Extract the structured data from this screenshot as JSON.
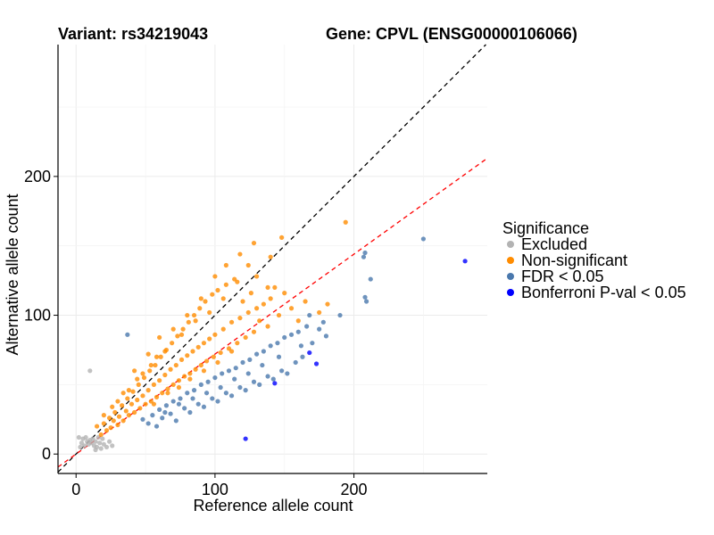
{
  "chart_data": {
    "type": "scatter",
    "title_left": "Variant: rs34219043",
    "title_right": "Gene: CPVL (ENSG00000106066)",
    "xlabel": "Reference allele count",
    "ylabel": "Alternative allele count",
    "xlim": [
      -13,
      296
    ],
    "ylim": [
      -14,
      295
    ],
    "xticks": [
      0,
      100,
      200
    ],
    "yticks": [
      0,
      100,
      200
    ],
    "grid": true,
    "legend": {
      "title": "Significance",
      "position": "right",
      "entries": [
        {
          "label": "Excluded",
          "color": "#b3b3b3"
        },
        {
          "label": "Non-significant",
          "color": "#ff8c00"
        },
        {
          "label": "FDR < 0.05",
          "color": "#4a78ad"
        },
        {
          "label": "Bonferroni P-val < 0.05",
          "color": "#0000ff"
        }
      ]
    },
    "reference_lines": [
      {
        "name": "identity",
        "slope": 1,
        "intercept": 0,
        "color": "#000000",
        "dash": "dashed"
      },
      {
        "name": "fit",
        "slope": 0.72,
        "intercept": 0,
        "color": "#ff0000",
        "dash": "dashed"
      }
    ],
    "series": [
      {
        "name": "Excluded",
        "color": "#b3b3b3",
        "points": [
          [
            2,
            12
          ],
          [
            4,
            8
          ],
          [
            5,
            11
          ],
          [
            6,
            6
          ],
          [
            7,
            12
          ],
          [
            8,
            9
          ],
          [
            9,
            7
          ],
          [
            10,
            10
          ],
          [
            10,
            60
          ],
          [
            11,
            8
          ],
          [
            12,
            11
          ],
          [
            13,
            6
          ],
          [
            14,
            9
          ],
          [
            15,
            5
          ],
          [
            16,
            12
          ],
          [
            17,
            8
          ],
          [
            18,
            4
          ],
          [
            19,
            11
          ],
          [
            20,
            7
          ],
          [
            22,
            5
          ],
          [
            24,
            9
          ],
          [
            26,
            6
          ],
          [
            14,
            3
          ],
          [
            3,
            5
          ]
        ]
      },
      {
        "name": "Non-significant",
        "color": "#ff8c00",
        "points": [
          [
            15,
            20
          ],
          [
            18,
            14
          ],
          [
            20,
            22
          ],
          [
            22,
            17
          ],
          [
            24,
            26
          ],
          [
            25,
            19
          ],
          [
            27,
            24
          ],
          [
            28,
            30
          ],
          [
            30,
            21
          ],
          [
            31,
            27
          ],
          [
            33,
            35
          ],
          [
            34,
            24
          ],
          [
            36,
            31
          ],
          [
            37,
            40
          ],
          [
            38,
            28
          ],
          [
            40,
            36
          ],
          [
            41,
            45
          ],
          [
            42,
            30
          ],
          [
            44,
            39
          ],
          [
            45,
            50
          ],
          [
            46,
            33
          ],
          [
            48,
            42
          ],
          [
            49,
            55
          ],
          [
            50,
            36
          ],
          [
            52,
            46
          ],
          [
            53,
            60
          ],
          [
            54,
            38
          ],
          [
            56,
            50
          ],
          [
            57,
            64
          ],
          [
            58,
            41
          ],
          [
            60,
            53
          ],
          [
            61,
            70
          ],
          [
            62,
            44
          ],
          [
            64,
            57
          ],
          [
            65,
            75
          ],
          [
            66,
            47
          ],
          [
            68,
            61
          ],
          [
            69,
            80
          ],
          [
            70,
            50
          ],
          [
            72,
            64
          ],
          [
            73,
            85
          ],
          [
            74,
            53
          ],
          [
            76,
            68
          ],
          [
            77,
            90
          ],
          [
            78,
            56
          ],
          [
            80,
            71
          ],
          [
            81,
            95
          ],
          [
            82,
            58
          ],
          [
            84,
            74
          ],
          [
            85,
            100
          ],
          [
            86,
            61
          ],
          [
            88,
            77
          ],
          [
            89,
            105
          ],
          [
            90,
            64
          ],
          [
            92,
            80
          ],
          [
            93,
            110
          ],
          [
            94,
            67
          ],
          [
            96,
            83
          ],
          [
            98,
            115
          ],
          [
            99,
            70
          ],
          [
            100,
            86
          ],
          [
            102,
            118
          ],
          [
            104,
            73
          ],
          [
            106,
            90
          ],
          [
            108,
            122
          ],
          [
            110,
            76
          ],
          [
            112,
            95
          ],
          [
            114,
            126
          ],
          [
            116,
            80
          ],
          [
            118,
            98
          ],
          [
            120,
            110
          ],
          [
            122,
            84
          ],
          [
            124,
            102
          ],
          [
            126,
            116
          ],
          [
            128,
            88
          ],
          [
            130,
            105
          ],
          [
            132,
            96
          ],
          [
            135,
            108
          ],
          [
            138,
            92
          ],
          [
            140,
            112
          ],
          [
            143,
            120
          ],
          [
            146,
            100
          ],
          [
            150,
            116
          ],
          [
            155,
            105
          ],
          [
            160,
            96
          ],
          [
            165,
            110
          ],
          [
            175,
            102
          ],
          [
            181,
            108
          ],
          [
            194,
            167
          ],
          [
            148,
            156
          ],
          [
            124,
            136
          ],
          [
            138,
            120
          ],
          [
            116,
            124
          ],
          [
            106,
            112
          ],
          [
            96,
            102
          ],
          [
            86,
            96
          ],
          [
            76,
            86
          ],
          [
            64,
            74
          ],
          [
            54,
            64
          ],
          [
            44,
            54
          ],
          [
            34,
            44
          ],
          [
            26,
            34
          ],
          [
            20,
            28
          ],
          [
            56,
            36
          ],
          [
            66,
            44
          ],
          [
            74,
            48
          ],
          [
            82,
            54
          ],
          [
            92,
            60
          ],
          [
            102,
            66
          ],
          [
            112,
            74
          ],
          [
            70,
            90
          ],
          [
            58,
            70
          ],
          [
            48,
            58
          ],
          [
            38,
            46
          ],
          [
            30,
            38
          ],
          [
            60,
            84
          ],
          [
            52,
            72
          ],
          [
            42,
            60
          ],
          [
            80,
            100
          ],
          [
            90,
            112
          ],
          [
            100,
            128
          ],
          [
            108,
            136
          ],
          [
            130,
            128
          ],
          [
            140,
            142
          ],
          [
            118,
            144
          ],
          [
            128,
            152
          ]
        ]
      },
      {
        "name": "FDR < 0.05",
        "color": "#4a78ad",
        "points": [
          [
            37,
            86
          ],
          [
            48,
            25
          ],
          [
            52,
            22
          ],
          [
            55,
            28
          ],
          [
            58,
            20
          ],
          [
            60,
            32
          ],
          [
            62,
            26
          ],
          [
            65,
            35
          ],
          [
            68,
            29
          ],
          [
            70,
            38
          ],
          [
            72,
            24
          ],
          [
            75,
            40
          ],
          [
            78,
            33
          ],
          [
            80,
            44
          ],
          [
            82,
            30
          ],
          [
            85,
            46
          ],
          [
            88,
            36
          ],
          [
            90,
            50
          ],
          [
            92,
            34
          ],
          [
            95,
            52
          ],
          [
            98,
            40
          ],
          [
            100,
            55
          ],
          [
            102,
            38
          ],
          [
            105,
            58
          ],
          [
            108,
            44
          ],
          [
            110,
            60
          ],
          [
            112,
            42
          ],
          [
            115,
            62
          ],
          [
            118,
            48
          ],
          [
            120,
            66
          ],
          [
            122,
            46
          ],
          [
            125,
            68
          ],
          [
            128,
            52
          ],
          [
            130,
            72
          ],
          [
            132,
            50
          ],
          [
            135,
            74
          ],
          [
            138,
            56
          ],
          [
            140,
            78
          ],
          [
            142,
            54
          ],
          [
            145,
            80
          ],
          [
            148,
            60
          ],
          [
            150,
            84
          ],
          [
            152,
            58
          ],
          [
            155,
            86
          ],
          [
            158,
            66
          ],
          [
            160,
            88
          ],
          [
            163,
            70
          ],
          [
            166,
            92
          ],
          [
            170,
            80
          ],
          [
            175,
            90
          ],
          [
            180,
            85
          ],
          [
            190,
            100
          ],
          [
            207,
            142
          ],
          [
            208,
            145
          ],
          [
            208,
            113
          ],
          [
            209,
            110
          ],
          [
            212,
            126
          ],
          [
            250,
            155
          ],
          [
            168,
            100
          ],
          [
            178,
            95
          ],
          [
            162,
            78
          ],
          [
            146,
            70
          ],
          [
            134,
            64
          ],
          [
            124,
            58
          ],
          [
            114,
            54
          ],
          [
            104,
            48
          ],
          [
            94,
            44
          ],
          [
            84,
            40
          ],
          [
            74,
            36
          ],
          [
            64,
            30
          ]
        ]
      },
      {
        "name": "Bonferroni P-val < 0.05",
        "color": "#0000ff",
        "points": [
          [
            122,
            11
          ],
          [
            143,
            51
          ],
          [
            168,
            73
          ],
          [
            173,
            65
          ],
          [
            280,
            139
          ]
        ]
      }
    ]
  }
}
